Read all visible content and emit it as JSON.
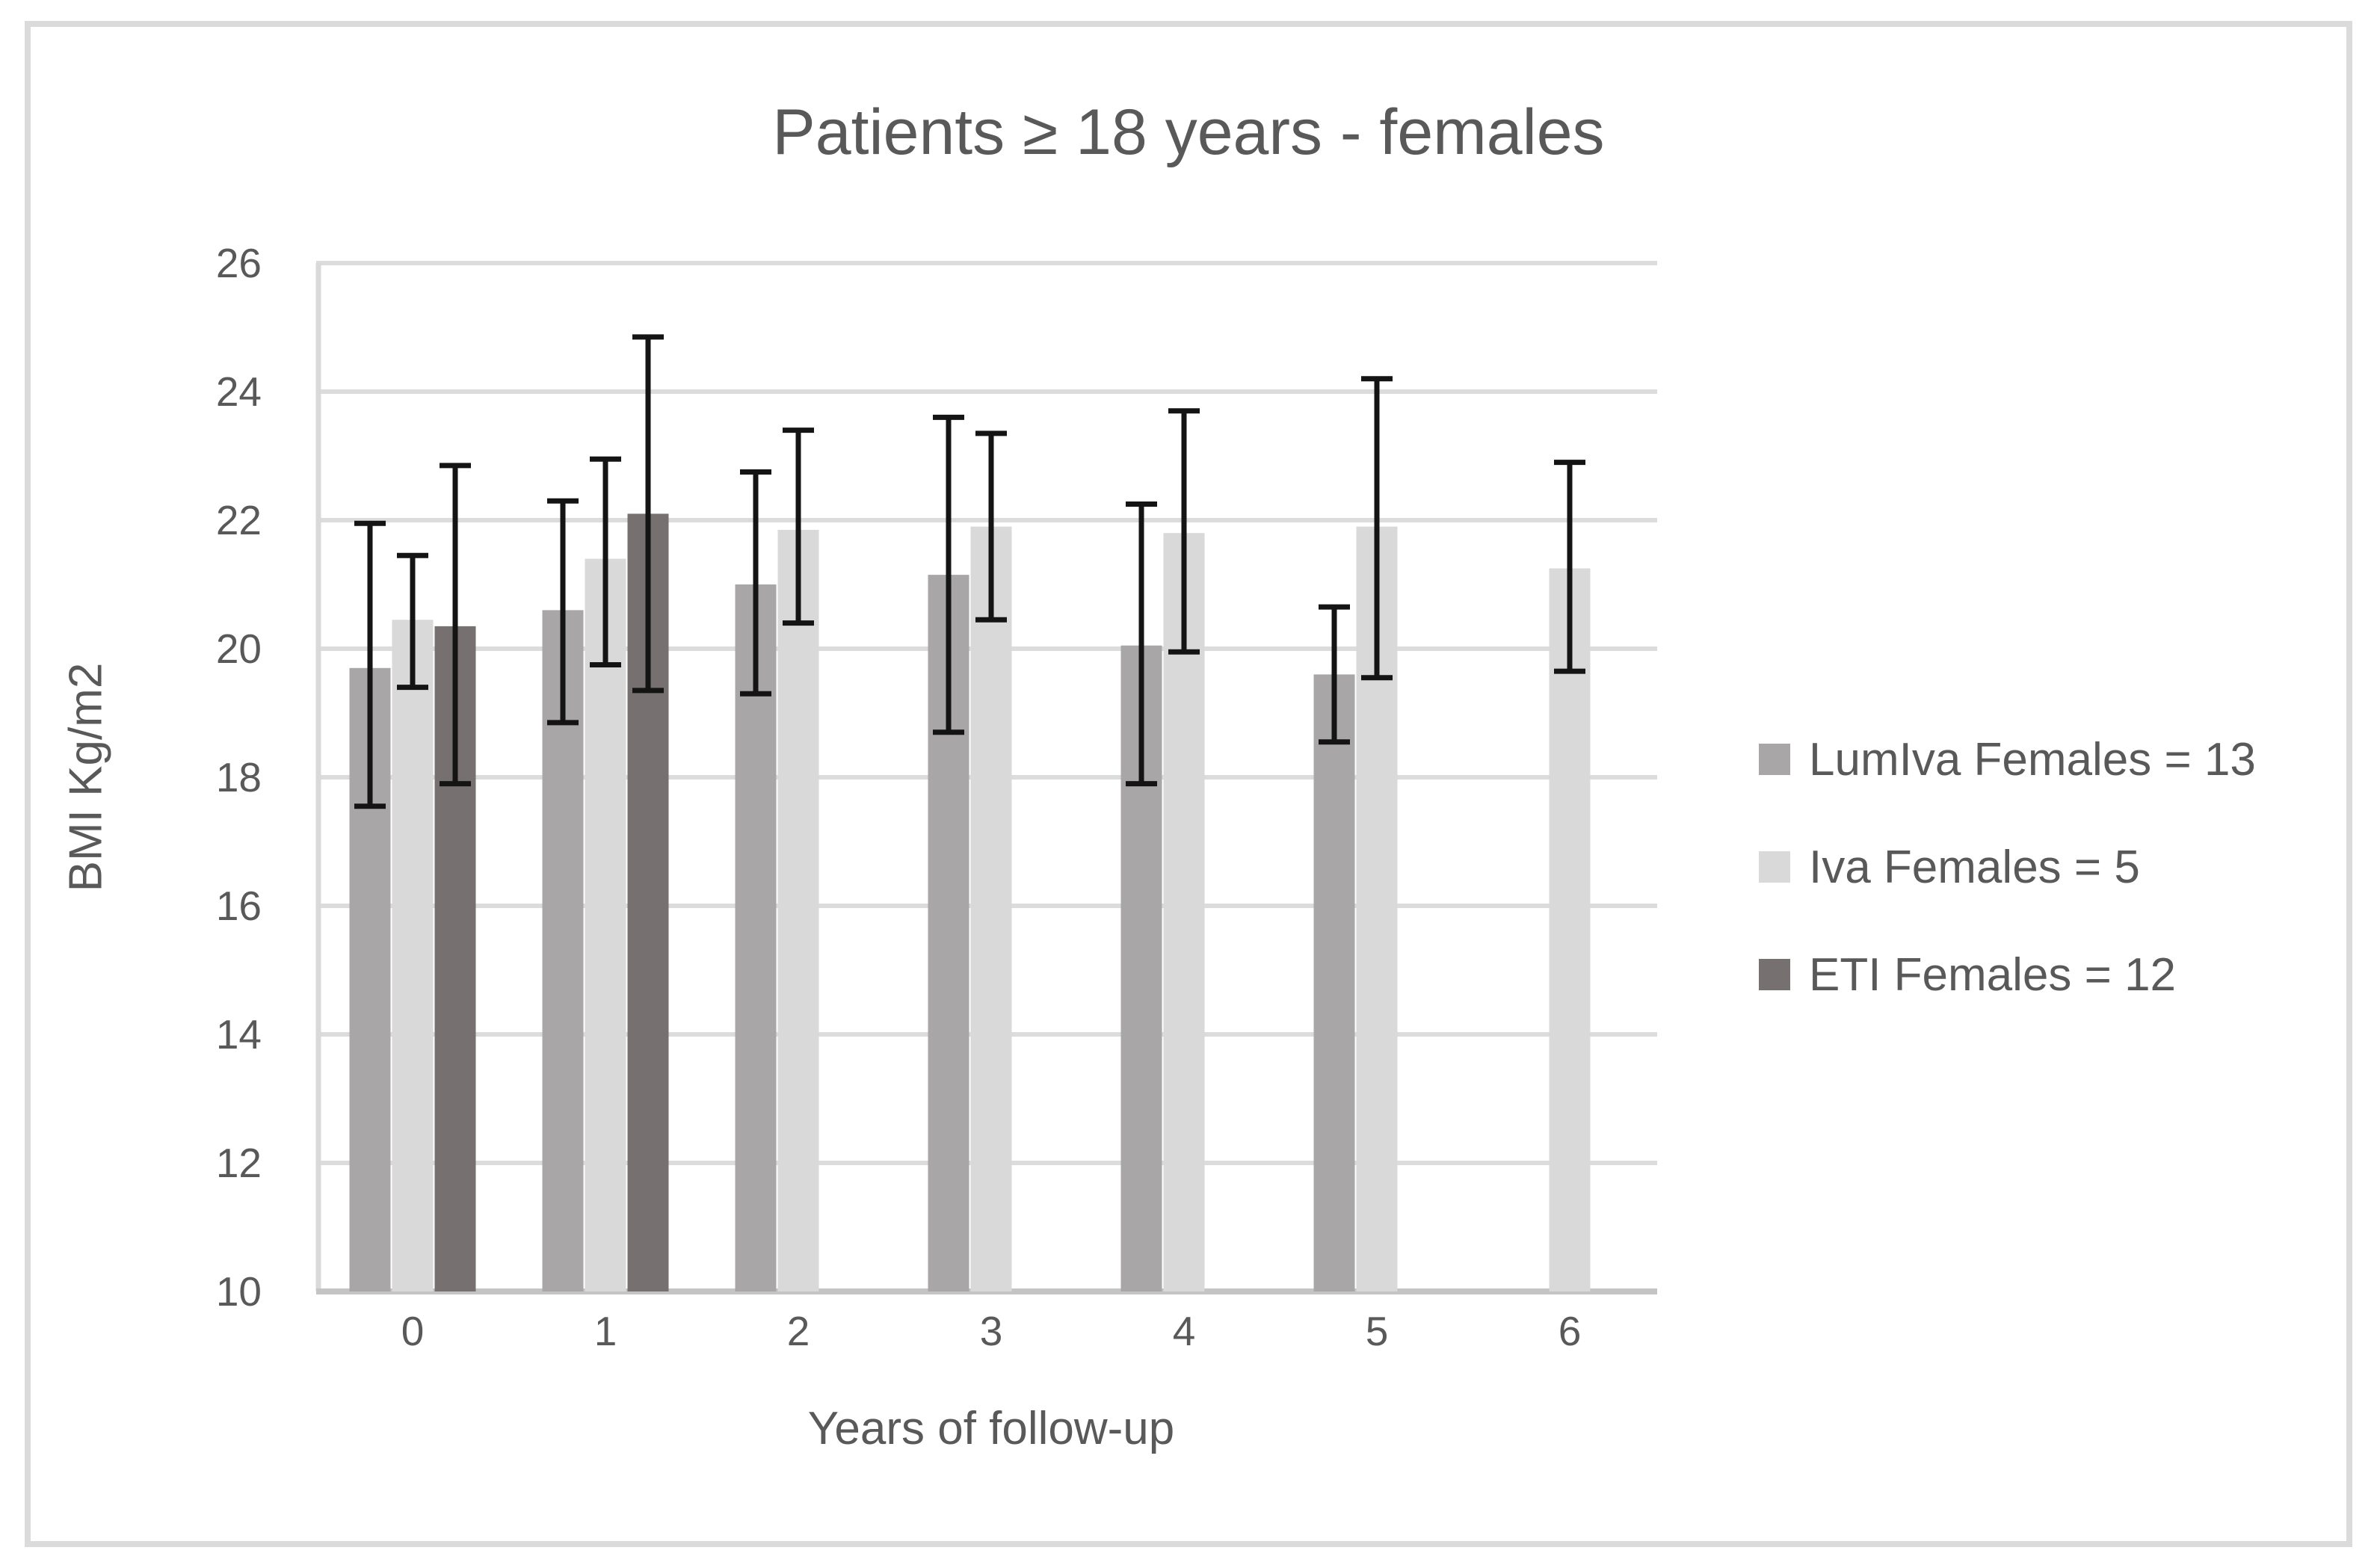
{
  "colors": {
    "text": "#595959",
    "grid": "#dcdcdc",
    "axis_x": "#c4c4c4",
    "axis_y": "#d9d9d9",
    "error_bar": "#141414",
    "frame": "#dbdbdb",
    "background": "#ffffff"
  },
  "chart_data": {
    "type": "bar",
    "title": "Patients ≥ 18 years - females",
    "xlabel": "Years of follow-up",
    "ylabel": "BMI Kg/m2",
    "ylim": [
      10,
      26
    ],
    "yticks": [
      10,
      12,
      14,
      16,
      18,
      20,
      22,
      24,
      26
    ],
    "categories": [
      "0",
      "1",
      "2",
      "3",
      "4",
      "5",
      "6"
    ],
    "grid": true,
    "legend_position": "right",
    "error_bars": true,
    "series": [
      {
        "name": "LumIva Females = 13",
        "color": "#a8a6a6",
        "values": [
          19.7,
          20.6,
          21.0,
          21.15,
          20.05,
          19.6,
          null
        ],
        "err_low": [
          17.55,
          18.85,
          19.3,
          18.7,
          17.9,
          18.55,
          null
        ],
        "err_high": [
          21.95,
          22.3,
          22.75,
          23.6,
          22.25,
          20.65,
          null
        ]
      },
      {
        "name": "Iva Females = 5",
        "color": "#d9d9d9",
        "values": [
          20.45,
          21.4,
          21.85,
          21.9,
          21.8,
          21.9,
          21.25
        ],
        "err_low": [
          19.4,
          19.75,
          20.4,
          20.45,
          19.95,
          19.55,
          19.65
        ],
        "err_high": [
          21.45,
          22.95,
          23.4,
          23.35,
          23.7,
          24.2,
          22.9
        ]
      },
      {
        "name": "ETI Females = 12",
        "color": "#767070",
        "values": [
          20.35,
          22.1,
          null,
          null,
          null,
          null,
          null
        ],
        "err_low": [
          17.9,
          19.35,
          null,
          null,
          null,
          null,
          null
        ],
        "err_high": [
          22.85,
          24.85,
          null,
          null,
          null,
          null,
          null
        ]
      }
    ]
  }
}
